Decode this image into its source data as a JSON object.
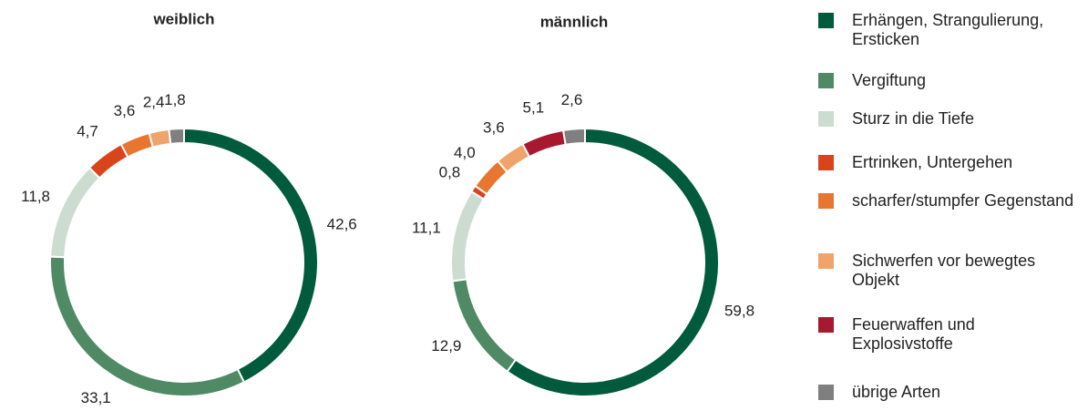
{
  "legend": {
    "items": [
      {
        "name": "Erhängen, Strangulierung, Ersticken",
        "color": "#005a3c"
      },
      {
        "name": "Vergiftung",
        "color": "#4f8a65"
      },
      {
        "name": "Sturz in die Tiefe",
        "color": "#cddcd0"
      },
      {
        "name": "Ertrinken, Untergehen",
        "color": "#d9441d"
      },
      {
        "name": "scharfer/stumpfer Gegenstand",
        "color": "#e87530"
      },
      {
        "name": "Sichwerfen vor bewegtes Objekt",
        "color": "#f0a46b"
      },
      {
        "name": "Feuerwaffen und Explosivstoffe",
        "color": "#a6192e"
      },
      {
        "name": "übrige Arten",
        "color": "#7f7f7f"
      }
    ]
  },
  "chart_data": [
    {
      "type": "donut",
      "title": "weiblich",
      "values": [
        42.6,
        33.1,
        11.8,
        4.7,
        3.6,
        2.4,
        null,
        1.8
      ],
      "value_labels": [
        "42,6",
        "33,1",
        "11,8",
        "4,7",
        "3,6",
        "2,4",
        null,
        "1,8"
      ]
    },
    {
      "type": "donut",
      "title": "männlich",
      "values": [
        59.8,
        12.9,
        11.1,
        0.8,
        4.0,
        3.6,
        5.1,
        2.6
      ],
      "value_labels": [
        "59,8",
        "12,9",
        "11,1",
        "0,8",
        "4,0",
        "3,6",
        "5,1",
        "2,6"
      ]
    }
  ]
}
